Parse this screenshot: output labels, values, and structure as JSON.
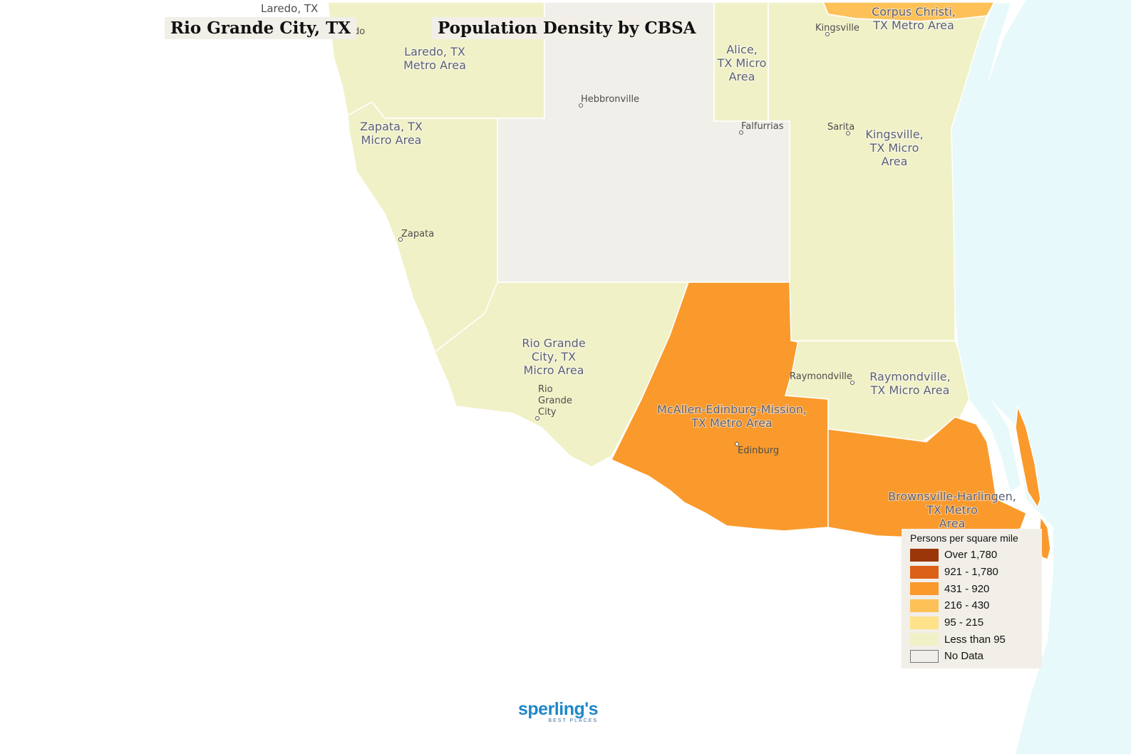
{
  "title": "Rio Grande City, TX",
  "map_title": "Population Density by CBSA",
  "colors": {
    "less_than_95": "#f1f1c8",
    "no_data": "#f0efea",
    "bin_431_920": "#fa9a2c",
    "bin_216_430": "#fdc158",
    "water": "#e7f9fa"
  },
  "regions": [
    {
      "name": "Laredo, TX Metro Area",
      "label_lines": [
        "Laredo, TX",
        "Metro Area"
      ],
      "density_class": "Less than 95"
    },
    {
      "name": "Zapata, TX Micro Area",
      "label_lines": [
        "Zapata, TX",
        "Micro Area"
      ],
      "density_class": "Less than 95"
    },
    {
      "name": "Rio Grande City, TX Micro Area",
      "label_lines": [
        "Rio Grande",
        "City, TX",
        "Micro Area"
      ],
      "density_class": "Less than 95"
    },
    {
      "name": "Alice, TX Micro Area",
      "label_lines": [
        "Alice,",
        "TX Micro",
        "Area"
      ],
      "density_class": "Less than 95"
    },
    {
      "name": "Kingsville, TX Micro Area",
      "label_lines": [
        "Kingsville,",
        "TX Micro",
        "Area"
      ],
      "density_class": "Less than 95"
    },
    {
      "name": "Raymondville, TX Micro Area",
      "label_lines": [
        "Raymondville,",
        "TX Micro Area"
      ],
      "density_class": "Less than 95"
    },
    {
      "name": "Corpus Christi, TX Metro Area",
      "label_lines": [
        "Corpus Christi,",
        "TX Metro Area"
      ],
      "density_class": "216 - 430"
    },
    {
      "name": "McAllen-Edinburg-Mission, TX Metro Area",
      "label_lines": [
        "McAllen-Edinburg-Mission,",
        "TX Metro Area"
      ],
      "density_class": "431 - 920"
    },
    {
      "name": "Brownsville-Harlingen, TX Metro Area",
      "label_lines": [
        "Brownsville-Harlingen,",
        "TX Metro",
        "Area"
      ],
      "density_class": "431 - 920"
    },
    {
      "name": "Unlabeled county (no data)",
      "density_class": "No Data"
    }
  ],
  "cities": [
    "Laredo, TX",
    "edo",
    "Kingsville",
    "Hebbronville",
    "Falfurrias",
    "Sarita",
    "Zapata",
    "Raymondville",
    "Rio",
    "Grande",
    "City",
    "Edinburg"
  ],
  "legend": {
    "title": "Persons per square mile",
    "items": [
      {
        "label": "Over 1,780",
        "color": "#9a3608"
      },
      {
        "label": "921 - 1,780",
        "color": "#dc6015"
      },
      {
        "label": "431 - 920",
        "color": "#fa9a2c"
      },
      {
        "label": "216 - 430",
        "color": "#fdc158"
      },
      {
        "label": "95 - 215",
        "color": "#fde28a"
      },
      {
        "label": "Less than 95",
        "color": "#f1f1c8"
      },
      {
        "label": "No Data",
        "color": "#f0efea"
      }
    ]
  },
  "logo": {
    "brand": "sperling's",
    "tagline": "BEST PLACES"
  }
}
